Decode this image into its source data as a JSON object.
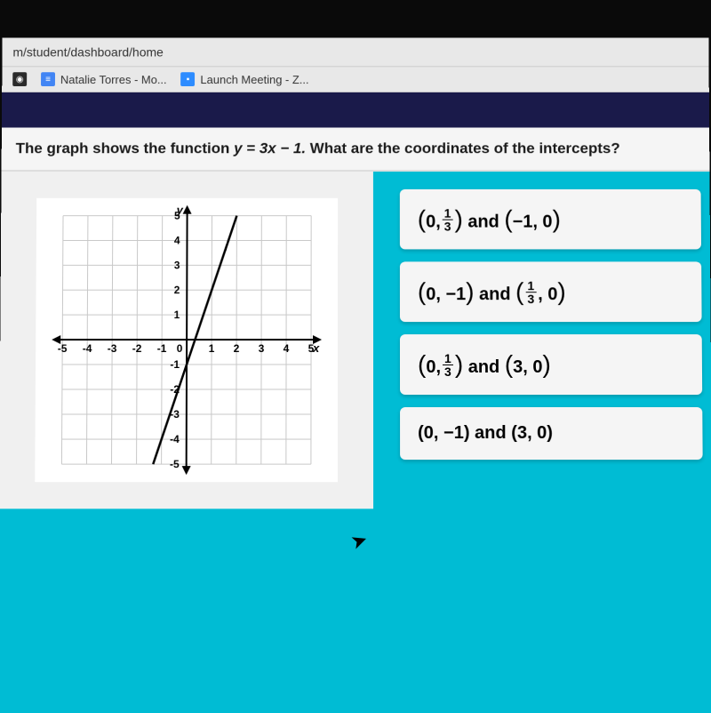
{
  "url": "m/student/dashboard/home",
  "bookmarks": [
    {
      "label": "Natalie Torres - Mo...",
      "icon": "doc"
    },
    {
      "label": "Launch Meeting - Z...",
      "icon": "zoom"
    }
  ],
  "pbs_icon": "◉",
  "question_prefix": "The graph shows the function ",
  "question_equation": "y = 3x − 1.",
  "question_suffix": " What are the coordinates of the intercepts?",
  "chart": {
    "type": "line",
    "xlim": [
      -5,
      5
    ],
    "ylim": [
      -5,
      5
    ],
    "xtick_step": 1,
    "ytick_step": 1,
    "x_ticks": [
      "-5",
      "-4",
      "-3",
      "-2",
      "-1",
      "0",
      "1",
      "2",
      "3",
      "4",
      "5"
    ],
    "y_ticks_pos": [
      "5",
      "4",
      "3",
      "2",
      "1"
    ],
    "y_ticks_neg": [
      "-1",
      "-2",
      "-3",
      "-4",
      "-5"
    ],
    "x_axis_label": "x",
    "y_axis_label": "y",
    "grid_color": "#c8c8c8",
    "axis_color": "#000000",
    "background_color": "#ffffff",
    "line_color": "#000000",
    "line_width": 2.5,
    "line_points": [
      [
        -1.333,
        -5
      ],
      [
        2,
        5
      ]
    ],
    "arrows": true
  },
  "answers": [
    {
      "text_parts": [
        "(0, ",
        {
          "frac": [
            "1",
            "3"
          ]
        },
        ") and (−1, 0)"
      ],
      "big": true
    },
    {
      "text_parts": [
        "(0, −1) and (",
        {
          "frac": [
            "1",
            "3"
          ]
        },
        ", 0)"
      ],
      "big": true
    },
    {
      "text_parts": [
        "(0, ",
        {
          "frac": [
            "1",
            "3"
          ]
        },
        ") and (3, 0)"
      ],
      "big": true
    },
    {
      "text_parts": [
        "(0, −1) and (3, 0)"
      ],
      "big": false
    }
  ],
  "colors": {
    "dark_strip": "#1a1a4a",
    "body_bg": "#00bcd4",
    "panel_bg": "#f0f0f0",
    "answer_bg": "#f5f5f5"
  }
}
